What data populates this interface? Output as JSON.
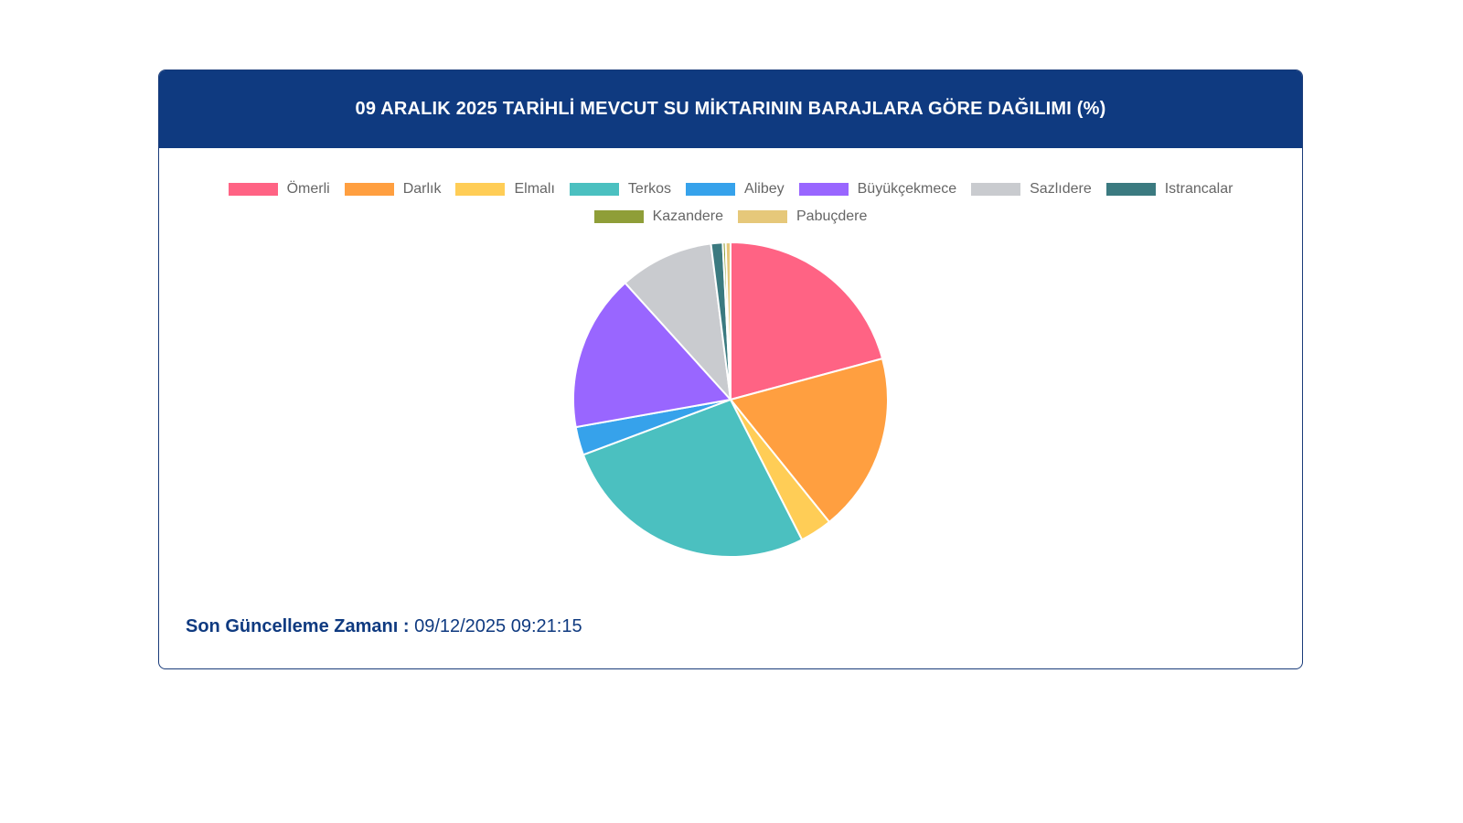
{
  "chart_data": {
    "type": "pie",
    "title": "09 ARALIK 2025 TARİHLİ MEVCUT SU MİKTARININ BARAJLARA GÖRE DAĞILIMI (%)",
    "legend_placement": "top",
    "categories": [
      "Ömerli",
      "Darlık",
      "Elmalı",
      "Terkos",
      "Alibey",
      "Büyükçekmece",
      "Sazlıdere",
      "Istrancalar",
      "Kazandere",
      "Pabuçdere"
    ],
    "values": [
      20.8,
      18.4,
      3.3,
      26.8,
      2.9,
      16.1,
      9.7,
      1.2,
      0.3,
      0.5
    ],
    "colors": [
      "#ff6384",
      "#ff9f40",
      "#ffcd56",
      "#4bc0c0",
      "#36a2eb",
      "#9966ff",
      "#c9cbcf",
      "#3b7a80",
      "#8f9e38",
      "#e6c87a"
    ]
  },
  "footer": {
    "label": "Son Güncelleme Zamanı :",
    "value": "09/12/2025 09:21:15"
  }
}
